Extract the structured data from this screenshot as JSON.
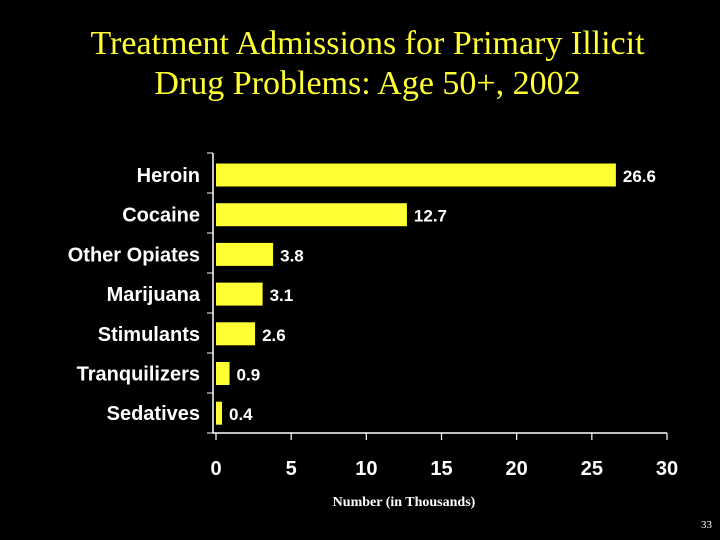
{
  "chart_data": {
    "type": "bar",
    "orientation": "horizontal",
    "title_lines": [
      "Treatment Admissions for Primary Illicit",
      "Drug Problems: Age 50+, 2002"
    ],
    "categories": [
      "Heroin",
      "Cocaine",
      "Other Opiates",
      "Marijuana",
      "Stimulants",
      "Tranquilizers",
      "Sedatives"
    ],
    "values": [
      26.6,
      12.7,
      3.8,
      3.1,
      2.6,
      0.9,
      0.4
    ],
    "value_labels": [
      "26.6",
      "12.7",
      "3.8",
      "3.1",
      "2.6",
      "0.9",
      "0.4"
    ],
    "xlabel": "Number (in Thousands)",
    "xlim": [
      0,
      30
    ],
    "xticks": [
      "0",
      "5",
      "10",
      "15",
      "20",
      "25",
      "30"
    ],
    "grid": false,
    "legend": "none",
    "colors": {
      "bar": "#FFFF33",
      "title": "#FFFF33",
      "background": "#000000",
      "text": "#FFFFFF"
    }
  },
  "page_number": "33"
}
